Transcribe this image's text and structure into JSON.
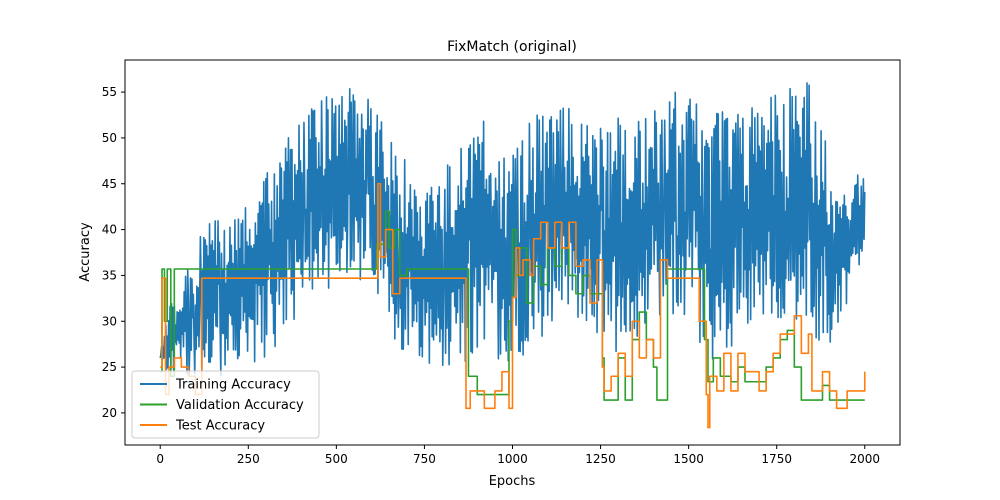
{
  "chart_data": {
    "type": "line",
    "title": "FixMatch (original)",
    "xlabel": "Epochs",
    "ylabel": "Accuracy",
    "xlim": [
      -100,
      2100
    ],
    "ylim": [
      16.5,
      58.5
    ],
    "xticks": [
      0,
      250,
      500,
      750,
      1000,
      1250,
      1500,
      1750,
      2000
    ],
    "yticks": [
      20,
      25,
      30,
      35,
      40,
      45,
      50,
      55
    ],
    "grid": false,
    "legend_position": "lower-left",
    "series": [
      {
        "name": "Training Accuracy",
        "color": "#1f77b4",
        "band_points": [
          [
            0,
            26,
            26
          ],
          [
            25,
            22,
            34
          ],
          [
            50,
            26,
            32
          ],
          [
            75,
            24,
            36
          ],
          [
            100,
            24,
            38
          ],
          [
            125,
            24,
            43
          ],
          [
            150,
            24,
            41
          ],
          [
            175,
            24,
            41
          ],
          [
            200,
            25,
            42
          ],
          [
            225,
            24,
            42
          ],
          [
            250,
            25,
            43
          ],
          [
            275,
            25,
            45
          ],
          [
            300,
            26,
            47
          ],
          [
            325,
            27,
            48
          ],
          [
            350,
            28,
            50
          ],
          [
            375,
            29,
            51
          ],
          [
            400,
            30,
            52
          ],
          [
            425,
            31,
            53
          ],
          [
            450,
            32,
            54
          ],
          [
            475,
            33,
            55
          ],
          [
            500,
            34,
            55
          ],
          [
            525,
            35,
            56
          ],
          [
            550,
            35,
            56
          ],
          [
            575,
            34,
            55
          ],
          [
            600,
            33,
            55
          ],
          [
            625,
            31,
            53
          ],
          [
            650,
            29,
            50
          ],
          [
            675,
            27,
            49
          ],
          [
            700,
            26,
            48
          ],
          [
            725,
            25,
            47
          ],
          [
            750,
            25,
            46
          ],
          [
            775,
            25,
            46
          ],
          [
            800,
            25,
            46
          ],
          [
            825,
            25,
            48
          ],
          [
            850,
            25,
            49
          ],
          [
            875,
            25,
            51
          ],
          [
            900,
            26,
            52
          ],
          [
            925,
            26,
            53
          ],
          [
            950,
            26,
            53
          ],
          [
            975,
            25,
            52
          ],
          [
            1000,
            25,
            51
          ],
          [
            1025,
            26,
            50
          ],
          [
            1050,
            27,
            52
          ],
          [
            1075,
            28,
            53
          ],
          [
            1100,
            29,
            53
          ],
          [
            1125,
            30,
            53
          ],
          [
            1150,
            30,
            54
          ],
          [
            1175,
            30,
            53
          ],
          [
            1200,
            30,
            53
          ],
          [
            1225,
            29,
            53
          ],
          [
            1250,
            28,
            52
          ],
          [
            1275,
            27,
            52
          ],
          [
            1300,
            26,
            53
          ],
          [
            1325,
            27,
            53
          ],
          [
            1350,
            28,
            54
          ],
          [
            1375,
            29,
            54
          ],
          [
            1400,
            30,
            54
          ],
          [
            1425,
            30,
            54
          ],
          [
            1450,
            30,
            55
          ],
          [
            1475,
            30,
            55
          ],
          [
            1500,
            30,
            55
          ],
          [
            1525,
            28,
            55
          ],
          [
            1550,
            25,
            54
          ],
          [
            1575,
            25,
            54
          ],
          [
            1600,
            25,
            53
          ],
          [
            1625,
            27,
            53
          ],
          [
            1650,
            29,
            53
          ],
          [
            1675,
            30,
            54
          ],
          [
            1700,
            30,
            54
          ],
          [
            1725,
            30,
            55
          ],
          [
            1750,
            30,
            55
          ],
          [
            1775,
            30,
            55
          ],
          [
            1800,
            30,
            56
          ],
          [
            1825,
            29,
            56
          ],
          [
            1850,
            27,
            57
          ],
          [
            1875,
            27,
            52
          ],
          [
            1900,
            27,
            48
          ],
          [
            1925,
            30,
            46
          ],
          [
            1950,
            32,
            45
          ],
          [
            1975,
            35,
            46
          ],
          [
            2000,
            38,
            46
          ]
        ],
        "samples_per_unit": 0.5
      },
      {
        "name": "Validation Accuracy",
        "color": "#2ca02c",
        "steps": [
          [
            0,
            24.5
          ],
          [
            5,
            35.7
          ],
          [
            12,
            30
          ],
          [
            20,
            35.7
          ],
          [
            30,
            24
          ],
          [
            40,
            35.7
          ],
          [
            120,
            35.7
          ],
          [
            610,
            35.7
          ],
          [
            615,
            38.4
          ],
          [
            640,
            42
          ],
          [
            650,
            38
          ],
          [
            665,
            40
          ],
          [
            680,
            35
          ],
          [
            700,
            35.7
          ],
          [
            860,
            35.7
          ],
          [
            875,
            24
          ],
          [
            900,
            22
          ],
          [
            950,
            22
          ],
          [
            990,
            30
          ],
          [
            1000,
            40
          ],
          [
            1010,
            35
          ],
          [
            1020,
            38
          ],
          [
            1040,
            32
          ],
          [
            1060,
            36
          ],
          [
            1080,
            34
          ],
          [
            1100,
            38
          ],
          [
            1120,
            36
          ],
          [
            1140,
            38
          ],
          [
            1160,
            35
          ],
          [
            1180,
            33
          ],
          [
            1200,
            35
          ],
          [
            1220,
            33
          ],
          [
            1240,
            33
          ],
          [
            1255,
            26
          ],
          [
            1260,
            21.4
          ],
          [
            1290,
            21.4
          ],
          [
            1300,
            26
          ],
          [
            1320,
            21.4
          ],
          [
            1340,
            28
          ],
          [
            1360,
            31
          ],
          [
            1380,
            28
          ],
          [
            1400,
            25
          ],
          [
            1410,
            21.4
          ],
          [
            1430,
            21.4
          ],
          [
            1440,
            35.7
          ],
          [
            1530,
            35.7
          ],
          [
            1545,
            28
          ],
          [
            1555,
            23.4
          ],
          [
            1570,
            26
          ],
          [
            1590,
            24
          ],
          [
            1620,
            23.4
          ],
          [
            1640,
            25
          ],
          [
            1660,
            23.4
          ],
          [
            1690,
            23.4
          ],
          [
            1720,
            25
          ],
          [
            1740,
            26
          ],
          [
            1760,
            28
          ],
          [
            1780,
            29
          ],
          [
            1800,
            25
          ],
          [
            1820,
            21.4
          ],
          [
            1860,
            21.4
          ],
          [
            1880,
            23
          ],
          [
            1900,
            21.4
          ],
          [
            2000,
            21.4
          ]
        ]
      },
      {
        "name": "Test Accuracy",
        "color": "#ff7f0e",
        "steps": [
          [
            0,
            25
          ],
          [
            5,
            34.7
          ],
          [
            15,
            22
          ],
          [
            25,
            25
          ],
          [
            40,
            26
          ],
          [
            60,
            25
          ],
          [
            80,
            24
          ],
          [
            100,
            22
          ],
          [
            118,
            34.7
          ],
          [
            610,
            34.7
          ],
          [
            618,
            45
          ],
          [
            625,
            37
          ],
          [
            640,
            40
          ],
          [
            660,
            33
          ],
          [
            680,
            34.7
          ],
          [
            860,
            34.7
          ],
          [
            868,
            20.5
          ],
          [
            880,
            22.4
          ],
          [
            900,
            22.4
          ],
          [
            920,
            20.5
          ],
          [
            950,
            22.4
          ],
          [
            970,
            24.5
          ],
          [
            990,
            20.5
          ],
          [
            1000,
            32.6
          ],
          [
            1010,
            38
          ],
          [
            1020,
            35
          ],
          [
            1030,
            36.7
          ],
          [
            1050,
            35
          ],
          [
            1060,
            39
          ],
          [
            1080,
            40.8
          ],
          [
            1100,
            38
          ],
          [
            1120,
            40.8
          ],
          [
            1140,
            38
          ],
          [
            1160,
            40.8
          ],
          [
            1180,
            36
          ],
          [
            1200,
            36.7
          ],
          [
            1220,
            32
          ],
          [
            1240,
            36.7
          ],
          [
            1255,
            25
          ],
          [
            1260,
            22.4
          ],
          [
            1280,
            24
          ],
          [
            1300,
            26.5
          ],
          [
            1320,
            24
          ],
          [
            1340,
            30
          ],
          [
            1360,
            26
          ],
          [
            1380,
            28
          ],
          [
            1400,
            26
          ],
          [
            1420,
            36.7
          ],
          [
            1440,
            34.7
          ],
          [
            1520,
            34.7
          ],
          [
            1530,
            30
          ],
          [
            1550,
            22
          ],
          [
            1555,
            18.4
          ],
          [
            1560,
            24
          ],
          [
            1580,
            22.4
          ],
          [
            1600,
            26.5
          ],
          [
            1620,
            22.4
          ],
          [
            1640,
            26.5
          ],
          [
            1660,
            24.5
          ],
          [
            1700,
            22.4
          ],
          [
            1720,
            24.5
          ],
          [
            1740,
            26.5
          ],
          [
            1760,
            28.6
          ],
          [
            1800,
            30.6
          ],
          [
            1820,
            26.5
          ],
          [
            1840,
            28.6
          ],
          [
            1850,
            22.4
          ],
          [
            1880,
            24.5
          ],
          [
            1900,
            22.4
          ],
          [
            1920,
            20.5
          ],
          [
            1950,
            22.4
          ],
          [
            1990,
            22.4
          ],
          [
            2000,
            24.5
          ]
        ]
      }
    ]
  }
}
